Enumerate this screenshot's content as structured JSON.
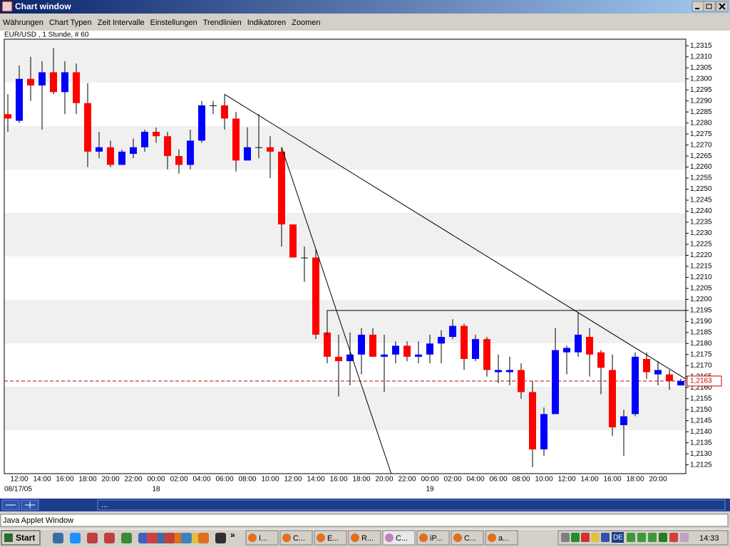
{
  "window": {
    "title": "Chart window"
  },
  "menu": [
    "Währungen",
    "Chart Typen",
    "Zeit Intervalle",
    "Einstellungen",
    "Trendlinien",
    "Indikatoren",
    "Zoomen"
  ],
  "chart_data": {
    "type": "candlestick",
    "title": "EUR/USD , 1 Stunde, # 60",
    "categories": [
      null,
      "12:00",
      null,
      "14:00",
      null,
      "16:00",
      null,
      "18:00",
      null,
      "20:00",
      null,
      "22:00",
      null,
      "00:00",
      null,
      "02:00",
      null,
      "04:00",
      null,
      "06:00",
      null,
      "08:00",
      null,
      "10:00",
      null,
      "12:00",
      null,
      "14:00",
      null,
      "16:00",
      null,
      "18:00",
      null,
      "20:00",
      null,
      "22:00",
      null,
      "00:00",
      null,
      "02:00",
      null,
      "04:00",
      null,
      "06:00",
      null,
      "08:00",
      null,
      "10:00",
      null,
      "12:00",
      null,
      "14:00",
      null,
      "16:00",
      null,
      "18:00",
      null,
      "20:00",
      null,
      null
    ],
    "date_labels": [
      null,
      "08/17/05",
      null,
      null,
      null,
      null,
      null,
      null,
      null,
      null,
      null,
      null,
      null,
      "18",
      null,
      null,
      null,
      null,
      null,
      null,
      null,
      null,
      null,
      null,
      null,
      null,
      null,
      null,
      null,
      null,
      null,
      null,
      null,
      null,
      null,
      null,
      null,
      "19",
      null,
      null,
      null,
      null,
      null,
      null,
      null,
      null,
      null,
      null,
      null,
      null,
      null,
      null,
      null,
      null,
      null,
      null,
      null,
      null,
      null,
      null
    ],
    "open": [
      1.2284,
      1.2281,
      1.23,
      1.2297,
      1.2303,
      1.2294,
      1.2303,
      1.2289,
      1.2267,
      1.2269,
      1.2261,
      1.2266,
      1.2269,
      1.2276,
      1.2274,
      1.2265,
      1.2261,
      1.2272,
      1.2288,
      1.2288,
      1.2282,
      1.2263,
      1.2269,
      1.2269,
      1.2267,
      1.2234,
      1.2219,
      1.2219,
      1.2185,
      1.2174,
      1.2172,
      1.2175,
      1.2184,
      1.2174,
      1.2175,
      1.2179,
      1.2174,
      1.2175,
      1.218,
      1.2183,
      1.2188,
      1.2173,
      1.2182,
      1.2167,
      1.2167,
      1.2168,
      1.2158,
      1.2132,
      1.2148,
      1.2176,
      1.2176,
      1.2183,
      1.2176,
      1.2168,
      1.2143,
      1.2148,
      1.2173,
      1.2166,
      1.2166,
      1.2161
    ],
    "high": [
      1.2293,
      1.2306,
      1.231,
      1.2308,
      1.2314,
      1.2308,
      1.2307,
      1.2298,
      1.2276,
      1.2272,
      1.2268,
      1.2273,
      1.2277,
      1.2278,
      1.2276,
      1.2268,
      1.2277,
      1.229,
      1.229,
      1.2293,
      1.2285,
      1.2278,
      1.2284,
      1.2274,
      1.2269,
      1.2234,
      1.2224,
      1.2223,
      1.2187,
      1.2184,
      1.2185,
      1.2187,
      1.2187,
      1.2184,
      1.2181,
      1.2181,
      1.2181,
      1.2184,
      1.2186,
      1.2191,
      1.2189,
      1.2184,
      1.2183,
      1.2175,
      1.2174,
      1.2171,
      1.2163,
      1.2151,
      1.2187,
      1.2179,
      1.2194,
      1.2187,
      1.2177,
      1.2175,
      1.215,
      1.2176,
      1.2176,
      1.2172,
      1.2168,
      1.2164
    ],
    "low": [
      1.2276,
      1.228,
      1.229,
      1.2277,
      1.2293,
      1.2284,
      1.2284,
      1.226,
      1.2264,
      1.226,
      1.2261,
      1.2264,
      1.2267,
      1.2271,
      1.2259,
      1.2257,
      1.2259,
      1.2271,
      1.2284,
      1.2277,
      1.2258,
      1.2263,
      1.2264,
      1.2255,
      1.2224,
      1.2219,
      1.2208,
      1.2182,
      1.2171,
      1.2156,
      1.2161,
      1.2166,
      1.2174,
      1.2158,
      1.2171,
      1.2172,
      1.2171,
      1.2171,
      1.2171,
      1.2182,
      1.2168,
      1.2172,
      1.2165,
      1.2162,
      1.2161,
      1.2155,
      1.2124,
      1.2129,
      1.2148,
      1.2166,
      1.2174,
      1.2165,
      1.2157,
      1.2138,
      1.2129,
      1.2147,
      1.2164,
      1.2161,
      1.2159,
      1.2161
    ],
    "close": [
      1.2282,
      1.23,
      1.2297,
      1.2303,
      1.2294,
      1.2303,
      1.2289,
      1.2267,
      1.2269,
      1.2261,
      1.2267,
      1.2269,
      1.2276,
      1.2274,
      1.2265,
      1.2261,
      1.2272,
      1.2288,
      1.2288,
      1.2282,
      1.2263,
      1.2269,
      1.2269,
      1.2267,
      1.2234,
      1.2219,
      1.2219,
      1.2184,
      1.2174,
      1.2172,
      1.2175,
      1.2184,
      1.2174,
      1.2175,
      1.2179,
      1.2174,
      1.2175,
      1.218,
      1.2183,
      1.2188,
      1.2173,
      1.2182,
      1.2168,
      1.2168,
      1.2168,
      1.2158,
      1.2132,
      1.2148,
      1.2177,
      1.2178,
      1.2184,
      1.2175,
      1.2169,
      1.2142,
      1.2147,
      1.2174,
      1.2167,
      1.2168,
      1.2163,
      1.2163
    ],
    "up_color": "#0000ff",
    "down_color": "#ff0000",
    "ylim": [
      1.2121,
      1.2318
    ],
    "yticks": [
      {
        "value": 1.2125,
        "label": "1,2125"
      },
      {
        "value": 1.213,
        "label": "1,2130"
      },
      {
        "value": 1.2135,
        "label": "1,2135"
      },
      {
        "value": 1.214,
        "label": "1,2140"
      },
      {
        "value": 1.2145,
        "label": "1,2145"
      },
      {
        "value": 1.215,
        "label": "1,2150"
      },
      {
        "value": 1.2155,
        "label": "1,2155"
      },
      {
        "value": 1.216,
        "label": "1,2160"
      },
      {
        "value": 1.2165,
        "label": "1,2165"
      },
      {
        "value": 1.217,
        "label": "1,2170"
      },
      {
        "value": 1.2175,
        "label": "1,2175"
      },
      {
        "value": 1.218,
        "label": "1,2180"
      },
      {
        "value": 1.2185,
        "label": "1,2185"
      },
      {
        "value": 1.219,
        "label": "1,2190"
      },
      {
        "value": 1.2195,
        "label": "1,2195"
      },
      {
        "value": 1.22,
        "label": "1,2200"
      },
      {
        "value": 1.2205,
        "label": "1,2205"
      },
      {
        "value": 1.221,
        "label": "1,2210"
      },
      {
        "value": 1.2215,
        "label": "1,2215"
      },
      {
        "value": 1.222,
        "label": "1,2220"
      },
      {
        "value": 1.2225,
        "label": "1,2225"
      },
      {
        "value": 1.223,
        "label": "1,2230"
      },
      {
        "value": 1.2235,
        "label": "1,2235"
      },
      {
        "value": 1.224,
        "label": "1,2240"
      },
      {
        "value": 1.2245,
        "label": "1,2245"
      },
      {
        "value": 1.225,
        "label": "1,2250"
      },
      {
        "value": 1.2255,
        "label": "1,2255"
      },
      {
        "value": 1.226,
        "label": "1,2260"
      },
      {
        "value": 1.2265,
        "label": "1,2265"
      },
      {
        "value": 1.227,
        "label": "1,2270"
      },
      {
        "value": 1.2275,
        "label": "1,2275"
      },
      {
        "value": 1.228,
        "label": "1,2280"
      },
      {
        "value": 1.2285,
        "label": "1,2285"
      },
      {
        "value": 1.229,
        "label": "1,2290"
      },
      {
        "value": 1.2295,
        "label": "1,2295"
      },
      {
        "value": 1.23,
        "label": "1,2300"
      },
      {
        "value": 1.2305,
        "label": "1,2305"
      },
      {
        "value": 1.231,
        "label": "1,2310"
      },
      {
        "value": 1.2315,
        "label": "1,2315"
      }
    ],
    "current_price": {
      "value": 1.2163,
      "label": "1,2163"
    },
    "current_price_color": "#cc0000",
    "trend_lines": [
      {
        "x": [
          19,
          59.4
        ],
        "y": [
          1.2293,
          1.2164
        ]
      },
      {
        "x": [
          24,
          34
        ],
        "y": [
          1.2269,
          1.2115
        ]
      },
      {
        "x": [
          28,
          28,
          59.4
        ],
        "y": [
          1.2184,
          1.2195,
          1.2195
        ]
      }
    ]
  },
  "toolbar": {
    "text": "..."
  },
  "status_bar": {
    "text": "Java Applet Window"
  },
  "taskbar": {
    "start": "Start",
    "overflow": "»",
    "tasks": [
      "I...",
      "C...",
      "E...",
      "R...",
      "C...",
      "iP...",
      "C...",
      "a..."
    ],
    "language": "DE",
    "clock": "14:33"
  }
}
